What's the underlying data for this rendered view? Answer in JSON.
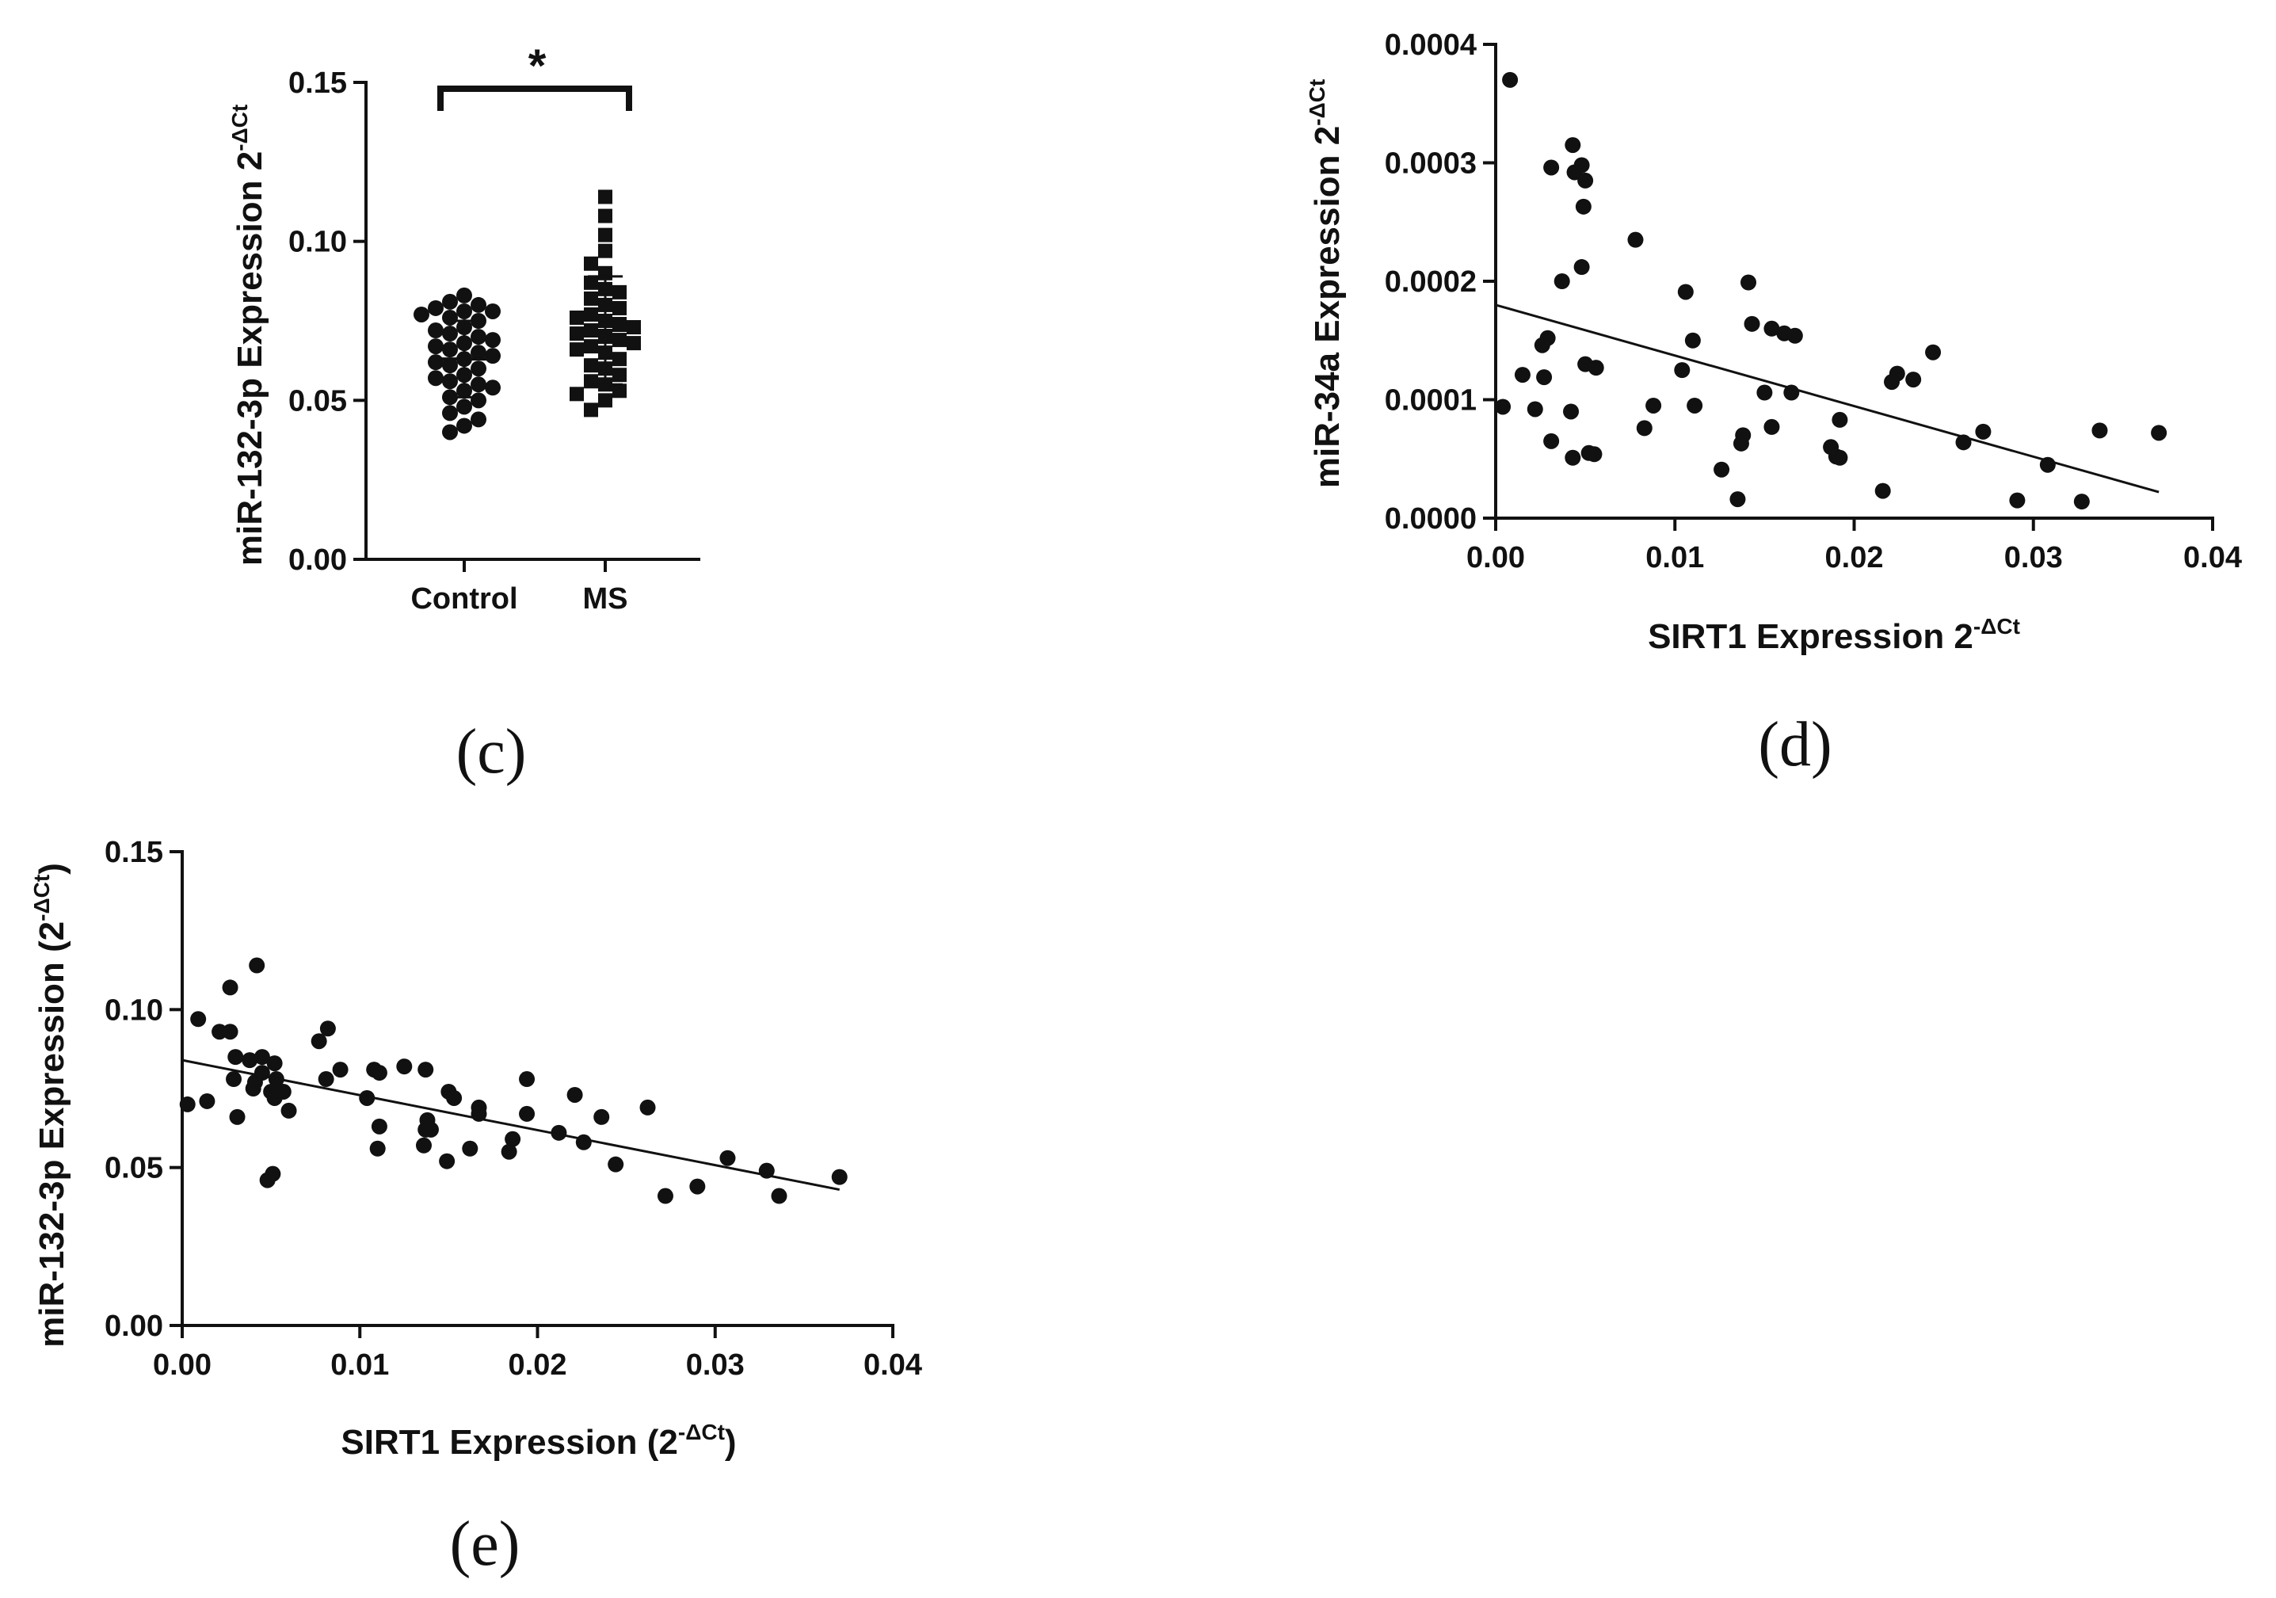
{
  "figure_title": "",
  "chart_data": [
    {
      "id": "c",
      "panel_label": "(c)",
      "type": "scatter",
      "subtype": "dot-plot with mean ± SD",
      "title": "",
      "xlabel": "",
      "ylabel": "miR-132-3p Expression 2",
      "ylabel_sup": "-ΔCt",
      "ylim": [
        0,
        0.15
      ],
      "yticks": [
        "0.00",
        "0.05",
        "0.10",
        "0.15"
      ],
      "yticks_values": [
        0,
        0.05,
        0.1,
        0.15
      ],
      "categories": [
        "Control",
        "MS"
      ],
      "significance": "*",
      "series": [
        {
          "name": "Control",
          "marker": "circle",
          "mean": 0.063,
          "sd": 0.012,
          "values": [
            0.083,
            0.081,
            0.08,
            0.079,
            0.078,
            0.078,
            0.077,
            0.076,
            0.075,
            0.073,
            0.072,
            0.071,
            0.07,
            0.069,
            0.068,
            0.067,
            0.066,
            0.065,
            0.064,
            0.063,
            0.062,
            0.061,
            0.06,
            0.058,
            0.057,
            0.056,
            0.055,
            0.054,
            0.053,
            0.051,
            0.05,
            0.048,
            0.046,
            0.044,
            0.042,
            0.04
          ]
        },
        {
          "name": "MS",
          "marker": "square",
          "mean": 0.072,
          "sd": 0.017,
          "values": [
            0.114,
            0.108,
            0.102,
            0.097,
            0.093,
            0.09,
            0.087,
            0.085,
            0.084,
            0.082,
            0.08,
            0.079,
            0.077,
            0.076,
            0.075,
            0.074,
            0.073,
            0.072,
            0.071,
            0.07,
            0.069,
            0.068,
            0.067,
            0.066,
            0.065,
            0.063,
            0.061,
            0.06,
            0.058,
            0.056,
            0.055,
            0.053,
            0.052,
            0.05,
            0.047
          ]
        }
      ]
    },
    {
      "id": "d",
      "panel_label": "(d)",
      "type": "scatter",
      "title": "",
      "xlabel": "SIRT1 Expression 2",
      "xlabel_sup": "-ΔCt",
      "ylabel": "miR-34a Expression 2",
      "ylabel_sup": "-ΔCt",
      "xlim": [
        0,
        0.04
      ],
      "ylim": [
        0,
        0.0004
      ],
      "xticks": [
        "0.00",
        "0.01",
        "0.02",
        "0.03",
        "0.04"
      ],
      "xticks_values": [
        0,
        0.01,
        0.02,
        0.03,
        0.04
      ],
      "yticks": [
        "0.0000",
        "0.0001",
        "0.0002",
        "0.0003",
        "0.0004"
      ],
      "yticks_values": [
        0,
        0.0001,
        0.0002,
        0.0003,
        0.0004
      ],
      "trendline": {
        "x": [
          0,
          0.037
        ],
        "y": [
          0.00018,
          2.2e-05
        ]
      },
      "points": [
        [
          0.0008,
          0.00037
        ],
        [
          0.0043,
          0.000315
        ],
        [
          0.0048,
          0.000298
        ],
        [
          0.0044,
          0.000292
        ],
        [
          0.0031,
          0.000296
        ],
        [
          0.005,
          0.000285
        ],
        [
          0.0049,
          0.000263
        ],
        [
          0.0078,
          0.000235
        ],
        [
          0.0048,
          0.000212
        ],
        [
          0.0037,
          0.0002
        ],
        [
          0.0141,
          0.000199
        ],
        [
          0.0106,
          0.000191
        ],
        [
          0.0143,
          0.000164
        ],
        [
          0.0154,
          0.00016
        ],
        [
          0.0161,
          0.000156
        ],
        [
          0.0167,
          0.000154
        ],
        [
          0.0029,
          0.000152
        ],
        [
          0.011,
          0.00015
        ],
        [
          0.0026,
          0.000146
        ],
        [
          0.0244,
          0.00014
        ],
        [
          0.005,
          0.00013
        ],
        [
          0.0056,
          0.000127
        ],
        [
          0.0104,
          0.000125
        ],
        [
          0.0015,
          0.000121
        ],
        [
          0.0027,
          0.000119
        ],
        [
          0.0224,
          0.000122
        ],
        [
          0.0233,
          0.000117
        ],
        [
          0.0221,
          0.000115
        ],
        [
          0.0165,
          0.000106
        ],
        [
          0.015,
          0.000106
        ],
        [
          0.0004,
          9.4e-05
        ],
        [
          0.0088,
          9.5e-05
        ],
        [
          0.0111,
          9.5e-05
        ],
        [
          0.0022,
          9.2e-05
        ],
        [
          0.0042,
          9e-05
        ],
        [
          0.0192,
          8.3e-05
        ],
        [
          0.0083,
          7.6e-05
        ],
        [
          0.0154,
          7.7e-05
        ],
        [
          0.0272,
          7.3e-05
        ],
        [
          0.0337,
          7.4e-05
        ],
        [
          0.037,
          7.2e-05
        ],
        [
          0.0138,
          7e-05
        ],
        [
          0.0031,
          6.5e-05
        ],
        [
          0.0261,
          6.4e-05
        ],
        [
          0.0137,
          6.3e-05
        ],
        [
          0.0187,
          6e-05
        ],
        [
          0.0052,
          5.5e-05
        ],
        [
          0.0055,
          5.4e-05
        ],
        [
          0.0043,
          5.1e-05
        ],
        [
          0.019,
          5.2e-05
        ],
        [
          0.0192,
          5.1e-05
        ],
        [
          0.0308,
          4.5e-05
        ],
        [
          0.0126,
          4.1e-05
        ],
        [
          0.0216,
          2.3e-05
        ],
        [
          0.0135,
          1.6e-05
        ],
        [
          0.0291,
          1.5e-05
        ],
        [
          0.0327,
          1.4e-05
        ]
      ]
    },
    {
      "id": "e",
      "panel_label": "(e)",
      "type": "scatter",
      "title": "",
      "xlabel": "SIRT1 Expression (2",
      "xlabel_sup": "-ΔCt",
      "xlabel_end": ")",
      "ylabel": "miR-132-3p Expression (2",
      "ylabel_sup": "-ΔCt",
      "ylabel_end": ")",
      "xlim": [
        0,
        0.04
      ],
      "ylim": [
        0,
        0.15
      ],
      "xticks": [
        "0.00",
        "0.01",
        "0.02",
        "0.03",
        "0.04"
      ],
      "xticks_values": [
        0,
        0.01,
        0.02,
        0.03,
        0.04
      ],
      "yticks": [
        "0.00",
        "0.05",
        "0.10",
        "0.15"
      ],
      "yticks_values": [
        0,
        0.05,
        0.1,
        0.15
      ],
      "trendline": {
        "x": [
          0,
          0.037
        ],
        "y": [
          0.084,
          0.043
        ]
      },
      "points": [
        [
          0.0042,
          0.114
        ],
        [
          0.0027,
          0.107
        ],
        [
          0.0009,
          0.097
        ],
        [
          0.0021,
          0.093
        ],
        [
          0.0027,
          0.093
        ],
        [
          0.0082,
          0.094
        ],
        [
          0.0077,
          0.09
        ],
        [
          0.0045,
          0.085
        ],
        [
          0.003,
          0.085
        ],
        [
          0.0038,
          0.084
        ],
        [
          0.0052,
          0.083
        ],
        [
          0.0125,
          0.082
        ],
        [
          0.0137,
          0.081
        ],
        [
          0.0108,
          0.081
        ],
        [
          0.0089,
          0.081
        ],
        [
          0.0045,
          0.08
        ],
        [
          0.0111,
          0.08
        ],
        [
          0.0029,
          0.078
        ],
        [
          0.0053,
          0.078
        ],
        [
          0.0081,
          0.078
        ],
        [
          0.0194,
          0.078
        ],
        [
          0.0041,
          0.077
        ],
        [
          0.004,
          0.075
        ],
        [
          0.015,
          0.074
        ],
        [
          0.005,
          0.074
        ],
        [
          0.0057,
          0.074
        ],
        [
          0.0221,
          0.073
        ],
        [
          0.0153,
          0.072
        ],
        [
          0.0104,
          0.072
        ],
        [
          0.0052,
          0.072
        ],
        [
          0.0014,
          0.071
        ],
        [
          0.0003,
          0.07
        ],
        [
          0.0262,
          0.069
        ],
        [
          0.0167,
          0.069
        ],
        [
          0.0167,
          0.067
        ],
        [
          0.006,
          0.068
        ],
        [
          0.0194,
          0.067
        ],
        [
          0.0031,
          0.066
        ],
        [
          0.0236,
          0.066
        ],
        [
          0.0138,
          0.065
        ],
        [
          0.0111,
          0.063
        ],
        [
          0.014,
          0.062
        ],
        [
          0.0212,
          0.061
        ],
        [
          0.0137,
          0.062
        ],
        [
          0.0186,
          0.059
        ],
        [
          0.0226,
          0.058
        ],
        [
          0.0136,
          0.057
        ],
        [
          0.0162,
          0.056
        ],
        [
          0.011,
          0.056
        ],
        [
          0.0184,
          0.055
        ],
        [
          0.0149,
          0.052
        ],
        [
          0.0307,
          0.053
        ],
        [
          0.0244,
          0.051
        ],
        [
          0.0329,
          0.049
        ],
        [
          0.0051,
          0.048
        ],
        [
          0.0048,
          0.046
        ],
        [
          0.037,
          0.047
        ],
        [
          0.029,
          0.044
        ],
        [
          0.0272,
          0.041
        ],
        [
          0.0336,
          0.041
        ]
      ]
    }
  ]
}
